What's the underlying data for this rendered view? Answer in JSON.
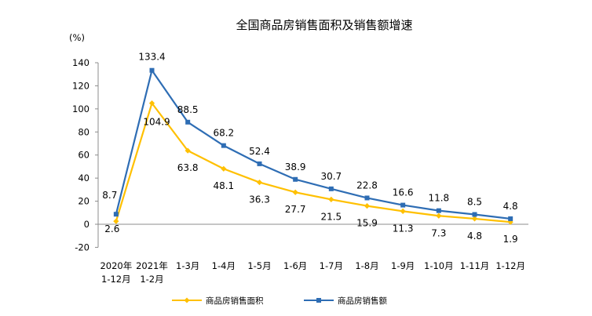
{
  "chart_data": {
    "type": "line",
    "title": "全国商品房销售面积及销售额增速",
    "ylabel": "(%)",
    "ylim": [
      -20,
      140
    ],
    "yticks": [
      -20,
      0,
      20,
      40,
      60,
      80,
      100,
      120,
      140
    ],
    "categories": [
      [
        "2020年",
        "1-12月"
      ],
      [
        "2021年",
        "1-2月"
      ],
      [
        "1-3月"
      ],
      [
        "1-4月"
      ],
      [
        "1-5月"
      ],
      [
        "1-6月"
      ],
      [
        "1-7月"
      ],
      [
        "1-8月"
      ],
      [
        "1-9月"
      ],
      [
        "1-10月"
      ],
      [
        "1-11月"
      ],
      [
        "1-12月"
      ]
    ],
    "series": [
      {
        "name": "商品房销售面积",
        "color": "#FFC000",
        "marker": "diamond",
        "values": [
          2.6,
          104.9,
          63.8,
          48.1,
          36.3,
          27.7,
          21.5,
          15.9,
          11.3,
          7.3,
          4.8,
          1.9
        ]
      },
      {
        "name": "商品房销售额",
        "color": "#2E6DB4",
        "marker": "square",
        "values": [
          8.7,
          133.4,
          88.5,
          68.2,
          52.4,
          38.9,
          30.7,
          22.8,
          16.6,
          11.8,
          8.5,
          4.8
        ]
      }
    ],
    "grid": false,
    "legend": "bottom"
  }
}
